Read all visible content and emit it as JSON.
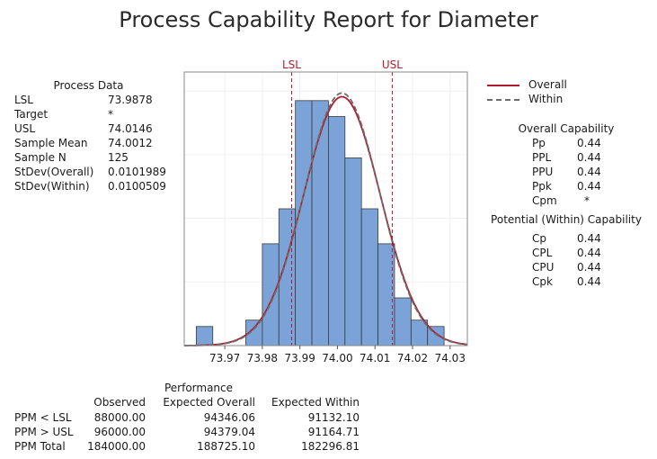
{
  "title": "Process Capability Report for Diameter",
  "process_data": {
    "heading": "Process Data",
    "rows": [
      {
        "label": "LSL",
        "value": "73.9878"
      },
      {
        "label": "Target",
        "value": "*"
      },
      {
        "label": "USL",
        "value": "74.0146"
      },
      {
        "label": "Sample Mean",
        "value": "74.0012"
      },
      {
        "label": "Sample N",
        "value": "125"
      },
      {
        "label": "StDev(Overall)",
        "value": "0.0101989"
      },
      {
        "label": "StDev(Within)",
        "value": "0.0100509"
      }
    ]
  },
  "legend": [
    {
      "label": "Overall",
      "color": "#b01c2e",
      "style": "solid"
    },
    {
      "label": "Within",
      "color": "#6b6b6b",
      "style": "dashed"
    }
  ],
  "overall_capability": {
    "heading": "Overall Capability",
    "rows": [
      {
        "label": "Pp",
        "value": "0.44"
      },
      {
        "label": "PPL",
        "value": "0.44"
      },
      {
        "label": "PPU",
        "value": "0.44"
      },
      {
        "label": "Ppk",
        "value": "0.44"
      },
      {
        "label": "Cpm",
        "value": "*"
      }
    ]
  },
  "within_capability": {
    "heading": "Potential (Within) Capability",
    "rows": [
      {
        "label": "Cp",
        "value": "0.44"
      },
      {
        "label": "CPL",
        "value": "0.44"
      },
      {
        "label": "CPU",
        "value": "0.44"
      },
      {
        "label": "Cpk",
        "value": "0.44"
      }
    ]
  },
  "performance": {
    "heading": "Performance",
    "columns": [
      "Observed",
      "Expected Overall",
      "Expected Within"
    ],
    "rows": [
      {
        "label": "PPM < LSL",
        "values": [
          "88000.00",
          "94346.06",
          "91132.10"
        ]
      },
      {
        "label": "PPM > USL",
        "values": [
          "96000.00",
          "94379.04",
          "91164.71"
        ]
      },
      {
        "label": "PPM Total",
        "values": [
          "184000.00",
          "188725.10",
          "182296.81"
        ]
      }
    ]
  },
  "chart_data": {
    "type": "bar",
    "subtype": "histogram-with-normal-curves",
    "bin_width": 0.0044,
    "bins": [
      {
        "x0": 73.9624,
        "x1": 73.9668,
        "density": 3
      },
      {
        "x0": 73.9668,
        "x1": 73.9712,
        "density": 0
      },
      {
        "x0": 73.9712,
        "x1": 73.9756,
        "density": 0
      },
      {
        "x0": 73.9756,
        "x1": 73.98,
        "density": 4
      },
      {
        "x0": 73.98,
        "x1": 73.9844,
        "density": 16
      },
      {
        "x0": 73.9844,
        "x1": 73.9888,
        "density": 21.5
      },
      {
        "x0": 73.9888,
        "x1": 73.9932,
        "density": 38.5
      },
      {
        "x0": 73.9932,
        "x1": 73.9976,
        "density": 38.5
      },
      {
        "x0": 73.9976,
        "x1": 74.002,
        "density": 36
      },
      {
        "x0": 74.002,
        "x1": 74.0064,
        "density": 29.5
      },
      {
        "x0": 74.0064,
        "x1": 74.0108,
        "density": 21.5
      },
      {
        "x0": 74.0108,
        "x1": 74.0152,
        "density": 16
      },
      {
        "x0": 74.0152,
        "x1": 74.0196,
        "density": 7.5
      },
      {
        "x0": 74.0196,
        "x1": 74.024,
        "density": 4
      },
      {
        "x0": 74.024,
        "x1": 74.0284,
        "density": 3
      }
    ],
    "curves": [
      {
        "name": "Overall",
        "mean": 74.0012,
        "stdev": 0.0101989,
        "color": "#b01c2e",
        "dash": false
      },
      {
        "name": "Within",
        "mean": 74.0012,
        "stdev": 0.0100509,
        "color": "#6b6b6b",
        "dash": true
      }
    ],
    "spec_lines": [
      {
        "label": "LSL",
        "value": 73.9878,
        "color": "#b01c2e"
      },
      {
        "label": "USL",
        "value": 74.0146,
        "color": "#b01c2e"
      }
    ],
    "xlim": [
      73.9592,
      74.0346
    ],
    "ylim": [
      0,
      43
    ],
    "x_ticks": [
      {
        "value": 73.97,
        "label": "73.97"
      },
      {
        "value": 73.98,
        "label": "73.98"
      },
      {
        "value": 73.99,
        "label": "73.99"
      },
      {
        "value": 74.0,
        "label": "74.00"
      },
      {
        "value": 74.01,
        "label": "74.01"
      },
      {
        "value": 74.02,
        "label": "74.02"
      },
      {
        "value": 74.03,
        "label": "74.03"
      }
    ],
    "bar_fill": "#7ba3d8",
    "bar_stroke": "#3a3a3a",
    "grid": true
  }
}
